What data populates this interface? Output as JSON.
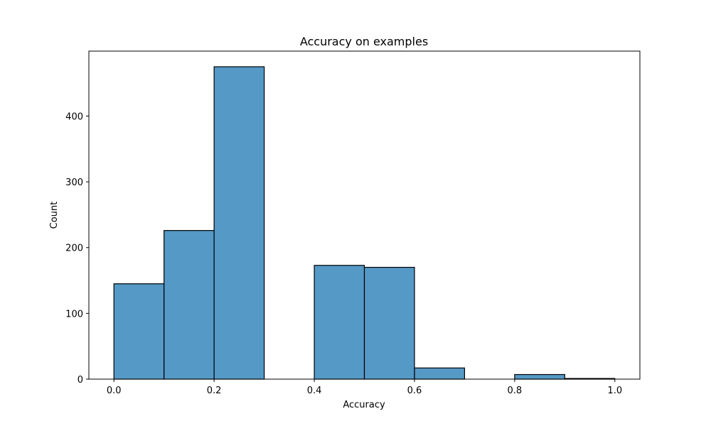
{
  "chart_data": {
    "type": "histogram",
    "title": "Accuracy on examples",
    "x_label": "Accuracy",
    "y_label": "Count",
    "bins": [
      0,
      0.1,
      0.2,
      0.3,
      0.4,
      0.5,
      0.6,
      0.7,
      0.8,
      0.9,
      1.0
    ],
    "counts": [
      145,
      226,
      475,
      0,
      173,
      170,
      17,
      0,
      7,
      1
    ],
    "color": "#5599c7",
    "edgecolor": "#000000",
    "xlim": [
      -0.05,
      1.05
    ],
    "ylim": [
      0,
      498.75
    ],
    "xticks": [
      {
        "value": 0,
        "label": "0.0"
      },
      0.2,
      0.4,
      0.6,
      0.8,
      {
        "value": 1,
        "label": "1.0"
      }
    ],
    "yticks": [
      0,
      100,
      200,
      300,
      400
    ]
  }
}
